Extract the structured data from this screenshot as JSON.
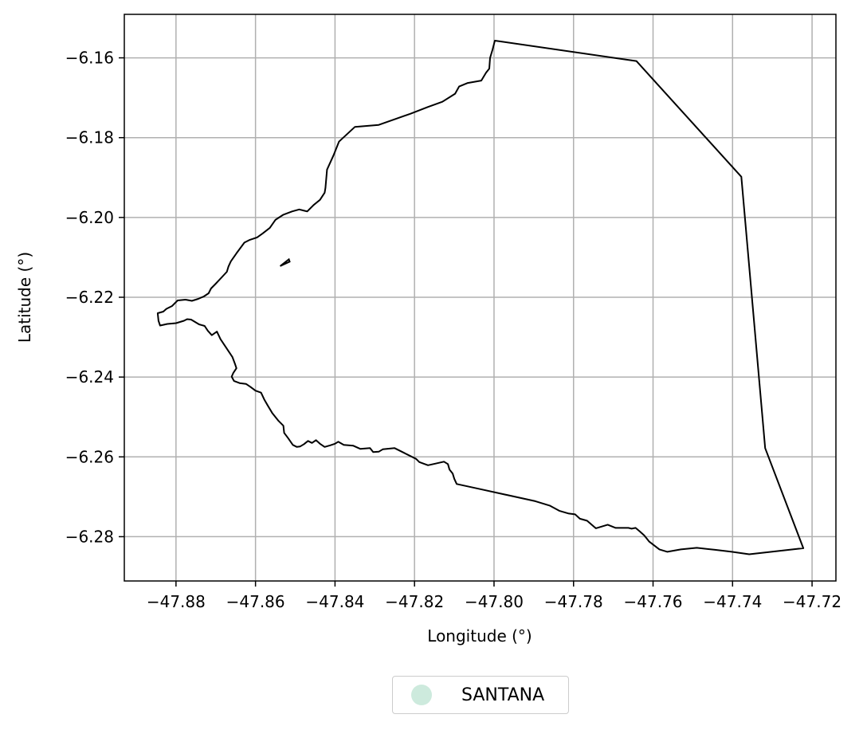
{
  "chart_data": {
    "type": "map",
    "xlabel": "Longitude (°)",
    "ylabel": "Latitude (°)",
    "xlim": [
      -47.893,
      -47.714
    ],
    "ylim": [
      -6.2911,
      -6.1491
    ],
    "xticks": [
      -47.88,
      -47.86,
      -47.84,
      -47.82,
      -47.8,
      -47.78,
      -47.76,
      -47.74,
      -47.72
    ],
    "xtick_labels": [
      "−47.88",
      "−47.86",
      "−47.84",
      "−47.82",
      "−47.80",
      "−47.78",
      "−47.76",
      "−47.74",
      "−47.72"
    ],
    "yticks": [
      -6.16,
      -6.18,
      -6.2,
      -6.22,
      -6.24,
      -6.26,
      -6.28
    ],
    "ytick_labels": [
      "−6.16",
      "−6.18",
      "−6.20",
      "−6.22",
      "−6.24",
      "−6.26",
      "−6.28"
    ],
    "grid": true,
    "legend": {
      "placement": "bottom-center",
      "entries": [
        {
          "label": "SANTANA",
          "color": "#cdeadd"
        }
      ]
    },
    "boundary": [
      [
        -47.7998,
        -6.1557
      ],
      [
        -47.7642,
        -6.1608
      ],
      [
        -47.7378,
        -6.1898
      ],
      [
        -47.7318,
        -6.2578
      ],
      [
        -47.7222,
        -6.2829
      ],
      [
        -47.7358,
        -6.2844
      ],
      [
        -47.7402,
        -6.2838
      ],
      [
        -47.7444,
        -6.2833
      ],
      [
        -47.749,
        -6.2828
      ],
      [
        -47.753,
        -6.2832
      ],
      [
        -47.7564,
        -6.2838
      ],
      [
        -47.7584,
        -6.2832
      ],
      [
        -47.761,
        -6.2812
      ],
      [
        -47.7622,
        -6.2797
      ],
      [
        -47.7632,
        -6.2788
      ],
      [
        -47.7644,
        -6.2778
      ],
      [
        -47.7654,
        -6.278
      ],
      [
        -47.7662,
        -6.2778
      ],
      [
        -47.7694,
        -6.2778
      ],
      [
        -47.7714,
        -6.277
      ],
      [
        -47.7744,
        -6.2779
      ],
      [
        -47.7766,
        -6.276
      ],
      [
        -47.7784,
        -6.2755
      ],
      [
        -47.7796,
        -6.2744
      ],
      [
        -47.7812,
        -6.2742
      ],
      [
        -47.7836,
        -6.2735
      ],
      [
        -47.786,
        -6.2722
      ],
      [
        -47.7896,
        -6.2711
      ],
      [
        -47.8034,
        -6.2681
      ],
      [
        -47.8094,
        -6.2668
      ],
      [
        -47.81,
        -6.2655
      ],
      [
        -47.8104,
        -6.2642
      ],
      [
        -47.8112,
        -6.2632
      ],
      [
        -47.8116,
        -6.2618
      ],
      [
        -47.8126,
        -6.2612
      ],
      [
        -47.8148,
        -6.2617
      ],
      [
        -47.8166,
        -6.2621
      ],
      [
        -47.8188,
        -6.2613
      ],
      [
        -47.8196,
        -6.2605
      ],
      [
        -47.8226,
        -6.259
      ],
      [
        -47.825,
        -6.2578
      ],
      [
        -47.828,
        -6.2581
      ],
      [
        -47.829,
        -6.2587
      ],
      [
        -47.8304,
        -6.2588
      ],
      [
        -47.8312,
        -6.2578
      ],
      [
        -47.8336,
        -6.258
      ],
      [
        -47.8354,
        -6.2572
      ],
      [
        -47.8378,
        -6.257
      ],
      [
        -47.8392,
        -6.2562
      ],
      [
        -47.84,
        -6.2567
      ],
      [
        -47.8412,
        -6.2571
      ],
      [
        -47.8426,
        -6.2575
      ],
      [
        -47.8438,
        -6.2567
      ],
      [
        -47.8448,
        -6.2558
      ],
      [
        -47.8458,
        -6.2565
      ],
      [
        -47.8468,
        -6.256
      ],
      [
        -47.8478,
        -6.2568
      ],
      [
        -47.8488,
        -6.2574
      ],
      [
        -47.8496,
        -6.2575
      ],
      [
        -47.8506,
        -6.257
      ],
      [
        -47.8518,
        -6.2553
      ],
      [
        -47.8528,
        -6.254
      ],
      [
        -47.853,
        -6.2522
      ],
      [
        -47.8542,
        -6.251
      ],
      [
        -47.8558,
        -6.249
      ],
      [
        -47.857,
        -6.247
      ],
      [
        -47.8578,
        -6.2456
      ],
      [
        -47.8586,
        -6.2439
      ],
      [
        -47.86,
        -6.2434
      ],
      [
        -47.8612,
        -6.2425
      ],
      [
        -47.8624,
        -6.2417
      ],
      [
        -47.864,
        -6.2415
      ],
      [
        -47.8654,
        -6.241
      ],
      [
        -47.866,
        -6.2399
      ],
      [
        -47.8656,
        -6.239
      ],
      [
        -47.8648,
        -6.2378
      ],
      [
        -47.8652,
        -6.2366
      ],
      [
        -47.8658,
        -6.235
      ],
      [
        -47.8688,
        -6.2305
      ],
      [
        -47.8697,
        -6.2286
      ],
      [
        -47.871,
        -6.2295
      ],
      [
        -47.872,
        -6.2284
      ],
      [
        -47.8728,
        -6.2272
      ],
      [
        -47.8742,
        -6.2268
      ],
      [
        -47.8762,
        -6.2256
      ],
      [
        -47.8772,
        -6.2255
      ],
      [
        -47.878,
        -6.2259
      ],
      [
        -47.88,
        -6.2265
      ],
      [
        -47.8822,
        -6.2267
      ],
      [
        -47.884,
        -6.2271
      ],
      [
        -47.8844,
        -6.2259
      ],
      [
        -47.8846,
        -6.224
      ],
      [
        -47.8832,
        -6.2236
      ],
      [
        -47.8824,
        -6.2229
      ],
      [
        -47.881,
        -6.2222
      ],
      [
        -47.8796,
        -6.2208
      ],
      [
        -47.8776,
        -6.2206
      ],
      [
        -47.876,
        -6.2209
      ],
      [
        -47.8744,
        -6.2204
      ],
      [
        -47.873,
        -6.2198
      ],
      [
        -47.8718,
        -6.219
      ],
      [
        -47.8712,
        -6.2178
      ],
      [
        -47.87,
        -6.2166
      ],
      [
        -47.8684,
        -6.2149
      ],
      [
        -47.8672,
        -6.2136
      ],
      [
        -47.8668,
        -6.2123
      ],
      [
        -47.8662,
        -6.211
      ],
      [
        -47.8648,
        -6.209
      ],
      [
        -47.8628,
        -6.2063
      ],
      [
        -47.8614,
        -6.2056
      ],
      [
        -47.8596,
        -6.205
      ],
      [
        -47.8582,
        -6.204
      ],
      [
        -47.8564,
        -6.2026
      ],
      [
        -47.855,
        -6.2006
      ],
      [
        -47.853,
        -6.1993
      ],
      [
        -47.8508,
        -6.1985
      ],
      [
        -47.849,
        -6.198
      ],
      [
        -47.847,
        -6.1985
      ],
      [
        -47.8454,
        -6.1969
      ],
      [
        -47.8438,
        -6.1956
      ],
      [
        -47.8426,
        -6.1938
      ],
      [
        -47.8424,
        -6.1926
      ],
      [
        -47.8422,
        -6.1903
      ],
      [
        -47.842,
        -6.188
      ],
      [
        -47.8404,
        -6.1845
      ],
      [
        -47.839,
        -6.181
      ],
      [
        -47.835,
        -6.1773
      ],
      [
        -47.829,
        -6.1768
      ],
      [
        -47.825,
        -6.1754
      ],
      [
        -47.821,
        -6.174
      ],
      [
        -47.8166,
        -6.1723
      ],
      [
        -47.813,
        -6.171
      ],
      [
        -47.8098,
        -6.169
      ],
      [
        -47.8088,
        -6.1672
      ],
      [
        -47.8066,
        -6.1663
      ],
      [
        -47.8032,
        -6.1657
      ],
      [
        -47.802,
        -6.1637
      ],
      [
        -47.8012,
        -6.1627
      ],
      [
        -47.801,
        -6.16
      ],
      [
        -47.8004,
        -6.158
      ]
    ],
    "inner_polygons": [
      [
        [
          -47.8538,
          -6.2122
        ],
        [
          -47.8514,
          -6.2111
        ],
        [
          -47.8516,
          -6.2105
        ],
        [
          -47.8538,
          -6.2122
        ]
      ]
    ]
  }
}
